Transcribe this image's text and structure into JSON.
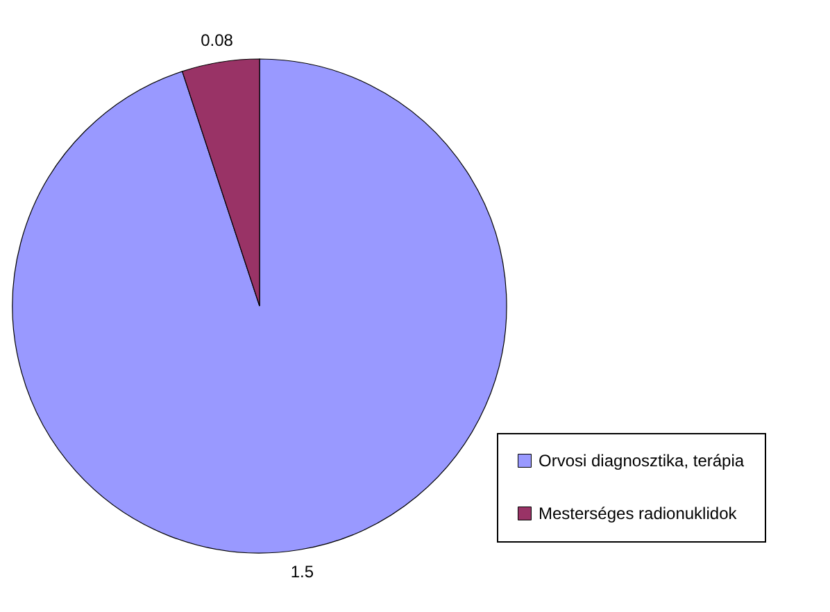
{
  "chart_data": {
    "type": "pie",
    "categories": [
      "Orvosi diagnosztika, terápia",
      "Mesterséges radionuklidok"
    ],
    "values": [
      1.5,
      0.08
    ],
    "colors": [
      "#9999ff",
      "#993366"
    ],
    "data_labels": true,
    "legend": "bottom right"
  }
}
